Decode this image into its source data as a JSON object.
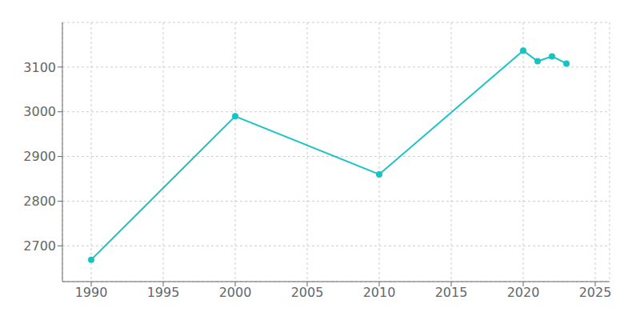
{
  "chart_data": {
    "type": "line",
    "x": [
      1990,
      2000,
      2010,
      2020,
      2021,
      2022,
      2023
    ],
    "values": [
      2669,
      2990,
      2860,
      3137,
      3113,
      3124,
      3108
    ],
    "color": "#17c3c3",
    "marker": "circle",
    "xlim": [
      1988,
      2026
    ],
    "ylim": [
      2620,
      3200
    ],
    "xticks": [
      1990,
      1995,
      2000,
      2005,
      2010,
      2015,
      2020,
      2025
    ],
    "yticks": [
      2700,
      2800,
      2900,
      3000,
      3100
    ],
    "grid": true
  }
}
